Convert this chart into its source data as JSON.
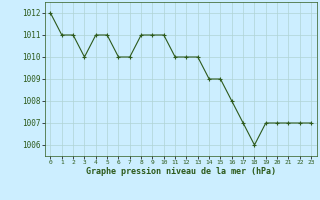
{
  "x": [
    0,
    1,
    2,
    3,
    4,
    5,
    6,
    7,
    8,
    9,
    10,
    11,
    12,
    13,
    14,
    15,
    16,
    17,
    18,
    19,
    20,
    21,
    22,
    23
  ],
  "y": [
    1012,
    1011,
    1011,
    1010,
    1011,
    1011,
    1010,
    1010,
    1011,
    1011,
    1011,
    1010,
    1010,
    1010,
    1009,
    1009,
    1008,
    1007,
    1006,
    1007,
    1007,
    1007,
    1007,
    1007
  ],
  "line_color": "#2d5a1b",
  "marker_color": "#2d5a1b",
  "bg_color": "#cceeff",
  "grid_color": "#b0d4d4",
  "xlabel": "Graphe pression niveau de la mer (hPa)",
  "xlabel_color": "#2d5a1b",
  "tick_color": "#2d5a1b",
  "ylim": [
    1005.5,
    1012.5
  ],
  "yticks": [
    1006,
    1007,
    1008,
    1009,
    1010,
    1011,
    1012
  ],
  "xticks": [
    0,
    1,
    2,
    3,
    4,
    5,
    6,
    7,
    8,
    9,
    10,
    11,
    12,
    13,
    14,
    15,
    16,
    17,
    18,
    19,
    20,
    21,
    22,
    23
  ]
}
